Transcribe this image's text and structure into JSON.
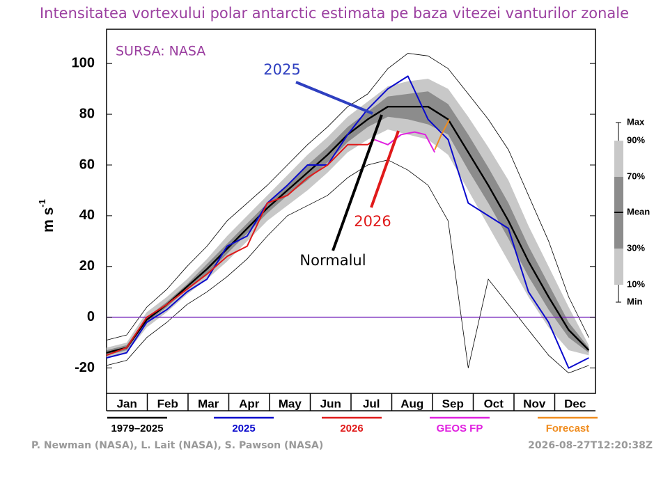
{
  "chart_data": {
    "type": "line",
    "title": "Intensitatea vortexului polar antarctic estimata pe baza vitezei vanturilor zonale",
    "source": "SURSA: NASA",
    "y_label": "m s",
    "y_label_sup": "-1",
    "categories": [
      "Jan",
      "Feb",
      "Mar",
      "Apr",
      "May",
      "Jun",
      "Jul",
      "Aug",
      "Sep",
      "Oct",
      "Nov",
      "Dec"
    ],
    "xlim": [
      0,
      365
    ],
    "ylim": [
      -30,
      113.5
    ],
    "yticks": [
      -20,
      0,
      20,
      40,
      60,
      80,
      100
    ],
    "zero_line_color": "#7b2fbe",
    "x": [
      0,
      15,
      30,
      45,
      60,
      75,
      90,
      105,
      120,
      135,
      150,
      165,
      180,
      195,
      210,
      225,
      240,
      255,
      270,
      285,
      300,
      315,
      330,
      345,
      360
    ],
    "bands": [
      {
        "color": "#c8c8c8",
        "low": [
          -16,
          -14,
          -4,
          2,
          9,
          15,
          22,
          30,
          38,
          44,
          50,
          57,
          65,
          70,
          74,
          72,
          70,
          64,
          50,
          36,
          22,
          8,
          -4,
          -13,
          -15
        ],
        "high": [
          -12,
          -10,
          2,
          8,
          15,
          23,
          32,
          40,
          48,
          56,
          64,
          71,
          79,
          85,
          91,
          93,
          94,
          90,
          79,
          67,
          54,
          36,
          20,
          4,
          -11
        ]
      },
      {
        "color": "#8c8c8c",
        "low": [
          -15,
          -13,
          -2,
          4,
          11,
          17,
          25,
          33,
          41,
          48,
          54,
          61,
          69,
          75,
          79,
          78,
          76,
          72,
          58,
          45,
          31,
          16,
          3,
          -8,
          -14
        ],
        "high": [
          -13,
          -11,
          0,
          6,
          13,
          21,
          29,
          37,
          45,
          52,
          60,
          67,
          75,
          81,
          87,
          88,
          89,
          84,
          72,
          59,
          45,
          28,
          13,
          -2,
          -12
        ]
      }
    ],
    "envelope": {
      "color": "#000000",
      "low": [
        -19,
        -17,
        -8,
        -2,
        5,
        10,
        16,
        23,
        32,
        40,
        44,
        48,
        55,
        60,
        62,
        58,
        52,
        38,
        -20,
        15,
        5,
        -5,
        -15,
        -22,
        -19
      ],
      "high": [
        -9,
        -7,
        4,
        11,
        20,
        28,
        38,
        45,
        52,
        60,
        68,
        75,
        83,
        88,
        98,
        104,
        103,
        98,
        88,
        78,
        66,
        48,
        30,
        8,
        -8
      ]
    },
    "series": [
      {
        "name": "1979–2025",
        "color": "#000000",
        "x": [
          0,
          15,
          30,
          45,
          60,
          75,
          90,
          105,
          120,
          135,
          150,
          165,
          180,
          195,
          210,
          225,
          240,
          255,
          270,
          285,
          300,
          315,
          330,
          345,
          360
        ],
        "values": [
          -14,
          -12,
          -1,
          5,
          12,
          19,
          27,
          35,
          43,
          50,
          57,
          64,
          72,
          78,
          83,
          83,
          83,
          78,
          65,
          52,
          38,
          22,
          8,
          -5,
          -13
        ]
      },
      {
        "name": "2025",
        "color": "#0a0acd",
        "x": [
          0,
          15,
          30,
          45,
          60,
          75,
          90,
          105,
          120,
          135,
          150,
          165,
          180,
          195,
          210,
          225,
          240,
          255,
          270,
          285,
          300,
          315,
          330,
          345,
          360
        ],
        "values": [
          -16,
          -14,
          -2,
          3,
          10,
          15,
          28,
          32,
          45,
          52,
          60,
          60,
          72,
          82,
          90,
          95,
          78,
          70,
          45,
          40,
          35,
          10,
          -2,
          -20,
          -16
        ]
      },
      {
        "name": "2026",
        "color": "#e01a1a",
        "x": [
          0,
          15,
          30,
          45,
          60,
          75,
          90,
          105,
          120,
          135,
          150,
          165,
          180,
          195,
          200
        ],
        "values": [
          -15,
          -12,
          0,
          5,
          11,
          17,
          24,
          28,
          45,
          48,
          55,
          60,
          68,
          68,
          70
        ]
      },
      {
        "name": "GEOS FP",
        "color": "#e020e0",
        "x": [
          200,
          210,
          220,
          230,
          238,
          245
        ],
        "values": [
          70,
          68,
          72,
          73,
          72,
          65
        ]
      },
      {
        "name": "Forecast",
        "color": "#f08c1e",
        "x": [
          245,
          250,
          256
        ],
        "values": [
          66,
          72,
          78
        ]
      }
    ],
    "annotations": [
      "2025",
      "2026",
      "Normalul"
    ],
    "band_legend": [
      "Max",
      "90%",
      "70%",
      "Mean",
      "30%",
      "10%",
      "Min"
    ],
    "credits": "P. Newman (NASA), L. Lait (NASA), S. Pawson (NASA)",
    "timestamp": "2026-08-27T12:20:38Z"
  }
}
